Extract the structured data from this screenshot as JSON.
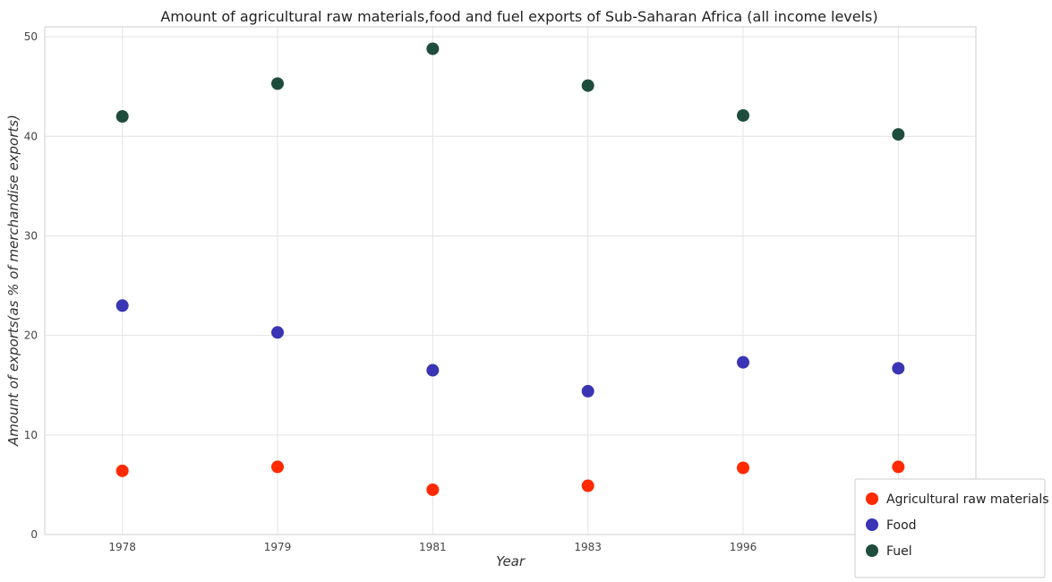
{
  "chart_data": {
    "type": "scatter",
    "title": "Amount of agricultural raw materials,food and fuel exports of Sub-Saharan Africa (all income levels)",
    "xlabel": "Year",
    "ylabel": "Amount of exports(as % of merchandise exports)",
    "categories": [
      "1978",
      "1979",
      "1981",
      "1983",
      "1996",
      "1997"
    ],
    "ylim": [
      0,
      51
    ],
    "yticks": [
      0,
      10,
      20,
      30,
      40,
      50
    ],
    "yticklabels": [
      "0",
      "10",
      "20",
      "30",
      "40",
      "50"
    ],
    "grid": true,
    "legend_position": "bottom-right",
    "series": [
      {
        "name": "Agricultural raw materials",
        "color": "#ff2a00",
        "values": [
          6.4,
          6.8,
          4.5,
          4.9,
          6.7,
          6.8
        ]
      },
      {
        "name": "Food",
        "color": "#3a35b5",
        "values": [
          23.0,
          20.3,
          16.5,
          14.4,
          17.3,
          16.7
        ]
      },
      {
        "name": "Fuel",
        "color": "#1f4d3d",
        "values": [
          42.0,
          45.3,
          48.8,
          45.1,
          42.1,
          40.2
        ]
      }
    ]
  }
}
